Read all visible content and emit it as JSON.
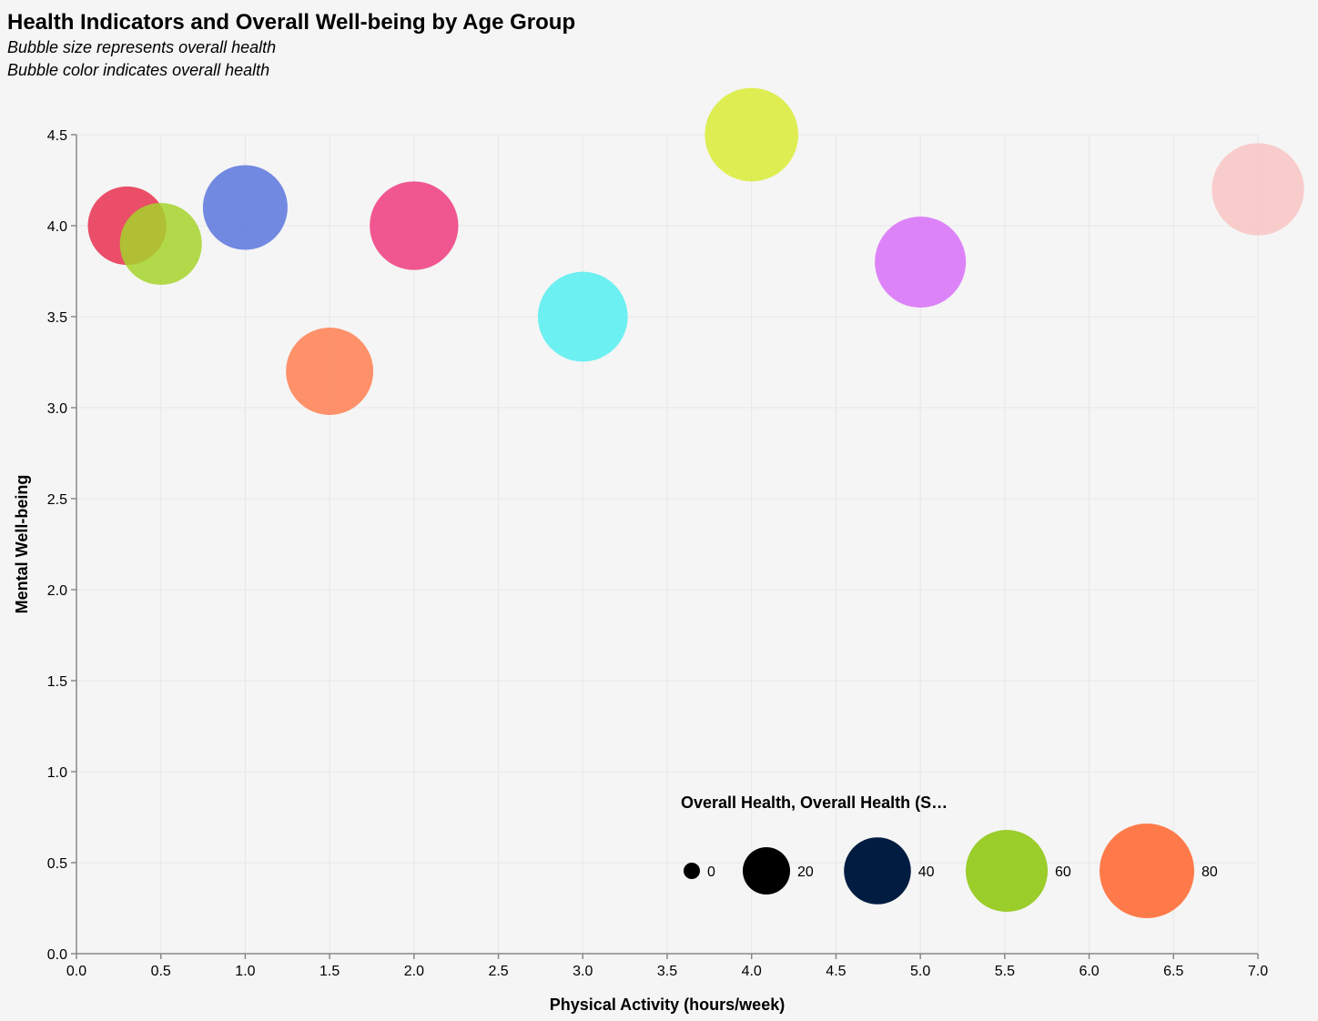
{
  "chart_data": {
    "type": "scatter",
    "title": "Health Indicators and Overall Well-being by Age Group",
    "subtitle": [
      "Bubble size represents overall health",
      "Bubble color indicates overall health"
    ],
    "xlabel": "Physical Activity (hours/week)",
    "ylabel": "Mental Well-being",
    "xlim": [
      0,
      7
    ],
    "ylim": [
      0,
      4.5
    ],
    "x_ticks": [
      "0.0",
      "0.5",
      "1.0",
      "1.5",
      "2.0",
      "2.5",
      "3.0",
      "3.5",
      "4.0",
      "4.5",
      "5.0",
      "5.5",
      "6.0",
      "6.5",
      "7.0"
    ],
    "y_ticks": [
      "0.0",
      "0.5",
      "1.0",
      "1.5",
      "2.0",
      "2.5",
      "3.0",
      "3.5",
      "4.0",
      "4.5"
    ],
    "grid": true,
    "legend": {
      "title": "Overall Health, Overall Health (S…",
      "position": "bottom-right",
      "entries": [
        {
          "label": "0",
          "value": 0,
          "color": "#000000"
        },
        {
          "label": "20",
          "value": 20,
          "color": "#000000"
        },
        {
          "label": "40",
          "value": 40,
          "color": "#001c41"
        },
        {
          "label": "60",
          "value": 60,
          "color": "#9bcd2b"
        },
        {
          "label": "80",
          "value": 80,
          "color": "#ff7a4a"
        }
      ]
    },
    "points": [
      {
        "x": 0.3,
        "y": 4.0,
        "health": 55,
        "color": "#e8304f"
      },
      {
        "x": 0.5,
        "y": 3.9,
        "health": 60,
        "color": "#a6d42a"
      },
      {
        "x": 1.0,
        "y": 4.1,
        "health": 64,
        "color": "#5b75dd"
      },
      {
        "x": 1.5,
        "y": 3.2,
        "health": 68,
        "color": "#ff7f50"
      },
      {
        "x": 2.0,
        "y": 4.0,
        "health": 70,
        "color": "#ef3b7e"
      },
      {
        "x": 3.0,
        "y": 3.5,
        "health": 72,
        "color": "#55eef0"
      },
      {
        "x": 4.0,
        "y": 4.5,
        "health": 78,
        "color": "#d9ec35"
      },
      {
        "x": 5.0,
        "y": 3.8,
        "health": 74,
        "color": "#d86ff8"
      },
      {
        "x": 7.0,
        "y": 4.2,
        "health": 76,
        "color": "#f9c4c4"
      }
    ]
  }
}
